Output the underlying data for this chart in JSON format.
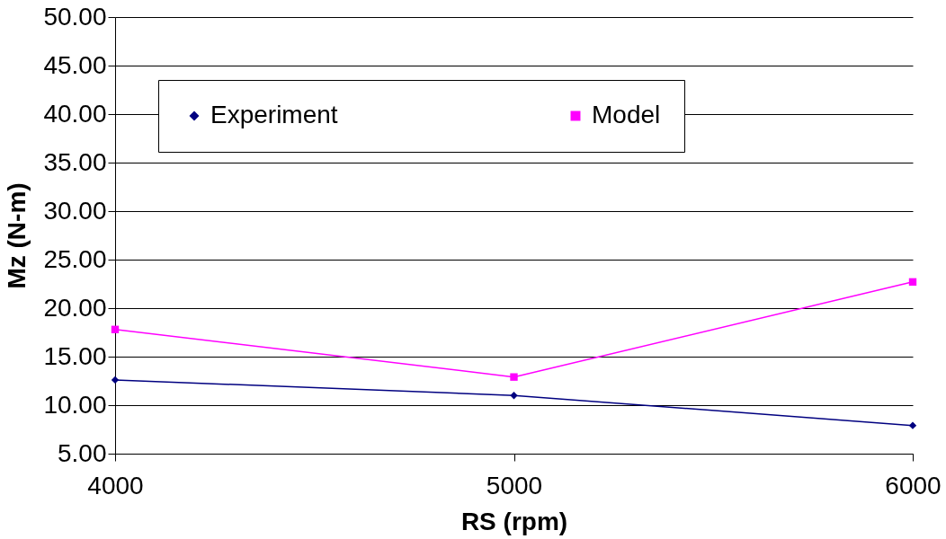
{
  "chart_data": {
    "type": "line",
    "xlabel": "RS (rpm)",
    "ylabel": "Mz (N-m)",
    "x": [
      4000,
      5000,
      6000
    ],
    "series": [
      {
        "name": "Experiment",
        "color": "#000080",
        "marker": "diamond",
        "values": [
          12.6,
          11.0,
          7.9
        ]
      },
      {
        "name": "Model",
        "color": "#ff00ff",
        "marker": "square",
        "values": [
          17.8,
          12.9,
          22.7
        ]
      }
    ],
    "xlim": [
      4000,
      6000
    ],
    "xticks": [
      {
        "value": 4000,
        "label": "4000"
      },
      {
        "value": 5000,
        "label": "5000"
      },
      {
        "value": 6000,
        "label": "6000"
      }
    ],
    "ylim": [
      5,
      50
    ],
    "yticks": [
      {
        "value": 5,
        "label": "5.00"
      },
      {
        "value": 10,
        "label": "10.00"
      },
      {
        "value": 15,
        "label": "15.00"
      },
      {
        "value": 20,
        "label": "20.00"
      },
      {
        "value": 25,
        "label": "25.00"
      },
      {
        "value": 30,
        "label": "30.00"
      },
      {
        "value": 35,
        "label": "35.00"
      },
      {
        "value": 40,
        "label": "40.00"
      },
      {
        "value": 45,
        "label": "45.00"
      },
      {
        "value": 50,
        "label": "50.00"
      }
    ],
    "grid": "y",
    "legend": "top"
  }
}
